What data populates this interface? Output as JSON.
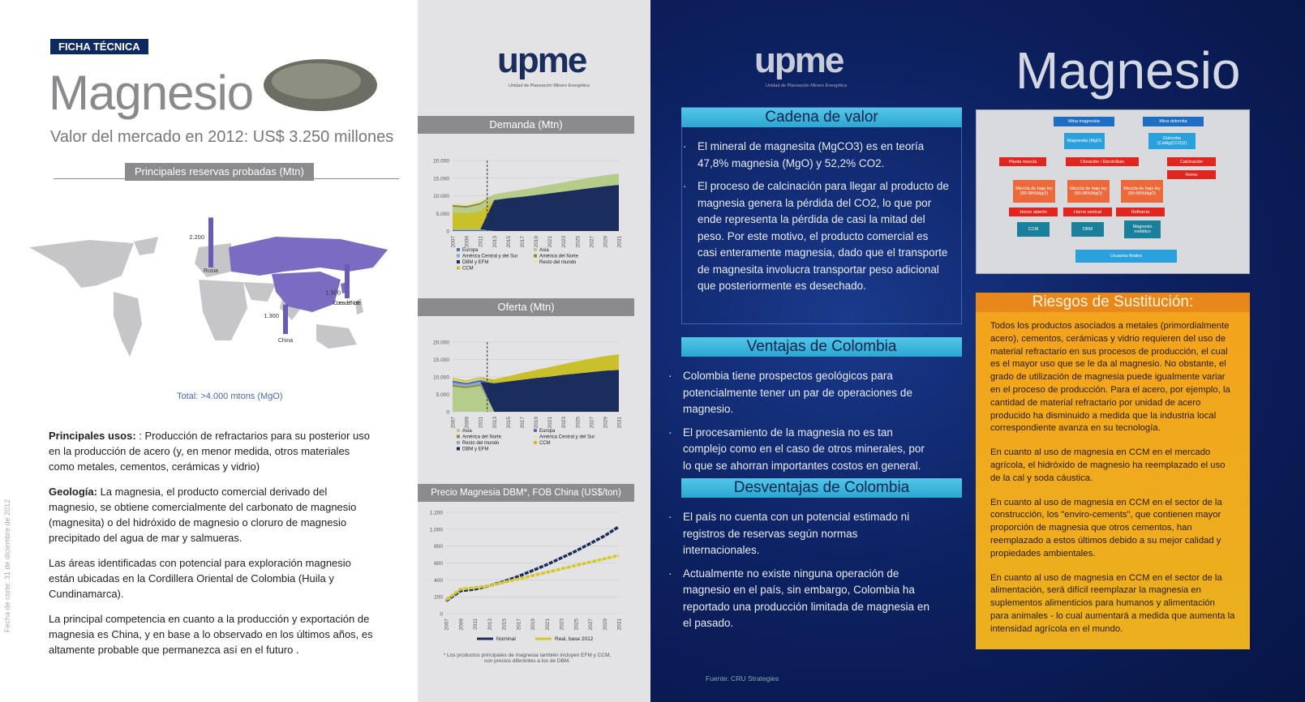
{
  "left": {
    "badge": "FICHA TÉCNICA",
    "title": "Magnesio",
    "subtitle": "Valor del mercado en 2012: US$ 3.250 millones",
    "map_title": "Principales reservas probadas (Mtn)",
    "reserves": [
      {
        "country": "Rusia",
        "value": 2200,
        "label": "2.200"
      },
      {
        "country": "Corea del Norte",
        "value": 1500,
        "label": "1.500"
      },
      {
        "country": "China",
        "value": 1300,
        "label": "1.300"
      }
    ],
    "map_total": "Total: >4.000 mtons (MgO)",
    "paragraphs": [
      {
        "lead": "Principales usos:",
        "text": " : Producción de refractarios para su posterior uso en la producción de acero (y, en menor medida, otros materiales como metales, cementos, cerámicas y vidrio)"
      },
      {
        "lead": "Geología:",
        "text": " La magnesia, el producto comercial derivado del magnesio, se obtiene  comercialmente del carbonato de magnesio (magnesita) o del hidróxido de magnesio o cloruro de magnesio precipitado del agua de mar y salmueras."
      },
      {
        "lead": "",
        "text": "Las áreas identificadas con potencial para exploración magnesio están ubicadas en la Cordillera Oriental de Colombia (Huila y Cundinamarca)."
      },
      {
        "lead": "",
        "text": "La principal competencia en cuanto a la producción y exportación de magnesia es China, y en base a lo observado en los últimos años, es altamente probable que permanezca así en el futuro ."
      }
    ],
    "date_note": "Fecha de corte: 31 de diciembre de 2012"
  },
  "middle": {
    "logo": "upme",
    "logo_sub": "Unidad de Planeación Minero Energética"
  },
  "chart_data": [
    {
      "type": "area",
      "title": "Demanda (Mtn)",
      "x": [
        2007,
        2009,
        2011,
        2013,
        2015,
        2017,
        2019,
        2021,
        2023,
        2025,
        2027,
        2029,
        2031
      ],
      "xlim": [
        2007,
        2031
      ],
      "forecast_start": 2012,
      "ylim": [
        0,
        20000
      ],
      "yticks": [
        0,
        {
          "value": 5000,
          "label": "5.000"
        },
        {
          "value": 10000,
          "label": "10.000"
        },
        {
          "value": 15000,
          "label": "15.000"
        },
        {
          "value": 20000,
          "label": "20.000"
        }
      ],
      "series": [
        {
          "name": "Europa",
          "color": "#4f73a8",
          "values": [
            300,
            300,
            300,
            0,
            0,
            0,
            0,
            0,
            0,
            0,
            0,
            0,
            0
          ]
        },
        {
          "name": "América Central y del Sur",
          "color": "#8fa6c8",
          "values": [
            200,
            200,
            200,
            0,
            0,
            0,
            0,
            0,
            0,
            0,
            0,
            0,
            0
          ]
        },
        {
          "name": "DBM y EFM",
          "color": "#1b2d5c",
          "values": [
            0,
            0,
            0,
            8800,
            9300,
            9700,
            10200,
            10700,
            11200,
            11700,
            12200,
            12700,
            13100
          ]
        },
        {
          "name": "CCM",
          "color": "#c9c02c",
          "values": [
            4800,
            4600,
            5200,
            0,
            0,
            0,
            0,
            0,
            0,
            0,
            0,
            0,
            0
          ]
        },
        {
          "name": "Asia",
          "color": "#b6cc8a",
          "values": [
            1600,
            1500,
            1800,
            1600,
            1800,
            2000,
            2200,
            2400,
            2600,
            2800,
            3000,
            3100,
            3200
          ]
        },
        {
          "name": "América del Norte",
          "color": "#8a8a3a",
          "values": [
            500,
            500,
            500,
            0,
            0,
            0,
            0,
            0,
            0,
            0,
            0,
            0,
            0
          ]
        },
        {
          "name": "Resto del mundo",
          "color": "#e4e2b4",
          "values": [
            700,
            700,
            800,
            0,
            0,
            0,
            0,
            0,
            0,
            0,
            0,
            0,
            0
          ]
        }
      ]
    },
    {
      "type": "area",
      "title": "Oferta (Mtn)",
      "x": [
        2007,
        2009,
        2011,
        2013,
        2015,
        2017,
        2019,
        2021,
        2023,
        2025,
        2027,
        2029,
        2031
      ],
      "xlim": [
        2007,
        2031
      ],
      "forecast_start": 2012,
      "ylim": [
        0,
        20000
      ],
      "yticks": [
        0,
        {
          "value": 5000,
          "label": "5.000"
        },
        {
          "value": 10000,
          "label": "10.000"
        },
        {
          "value": 15000,
          "label": "15.000"
        },
        {
          "value": 20000,
          "label": "20.000"
        }
      ],
      "series": [
        {
          "name": "Asia",
          "color": "#b6cc8a",
          "values": [
            7200,
            6800,
            7400,
            0,
            0,
            0,
            0,
            0,
            0,
            0,
            0,
            0,
            0
          ]
        },
        {
          "name": "América del Norte",
          "color": "#8a8a3a",
          "values": [
            500,
            400,
            500,
            0,
            0,
            0,
            0,
            0,
            0,
            0,
            0,
            0,
            0
          ]
        },
        {
          "name": "Resto del mundo",
          "color": "#8fa6c8",
          "values": [
            700,
            600,
            700,
            0,
            0,
            0,
            0,
            0,
            0,
            0,
            0,
            0,
            0
          ]
        },
        {
          "name": "DBM y EFM",
          "color": "#1b2d5c",
          "values": [
            0,
            0,
            0,
            8200,
            8700,
            9200,
            9700,
            10100,
            10600,
            11000,
            11400,
            11800,
            12000
          ]
        },
        {
          "name": "Europa",
          "color": "#4f73a8",
          "values": [
            600,
            500,
            600,
            0,
            0,
            0,
            0,
            0,
            0,
            0,
            0,
            0,
            0
          ]
        },
        {
          "name": "América Central y del Sur",
          "color": "#e4e2b4",
          "values": [
            300,
            300,
            300,
            0,
            0,
            0,
            0,
            0,
            0,
            0,
            0,
            0,
            0
          ]
        },
        {
          "name": "CCM",
          "color": "#c9c02c",
          "values": [
            400,
            400,
            400,
            1100,
            1500,
            1900,
            2300,
            2700,
            3100,
            3500,
            3900,
            4200,
            4500
          ]
        }
      ]
    },
    {
      "type": "line",
      "title": "Precio Magnesia DBM*, FOB China (US$/ton)",
      "x": [
        2007,
        2009,
        2011,
        2013,
        2015,
        2017,
        2019,
        2021,
        2023,
        2025,
        2027,
        2029,
        2031
      ],
      "xlim": [
        2007,
        2031
      ],
      "ylim": [
        0,
        1200
      ],
      "yticks": [
        0,
        200,
        400,
        600,
        800,
        {
          "value": 1000,
          "label": "1.000"
        },
        {
          "value": 1200,
          "label": "1.200"
        }
      ],
      "series": [
        {
          "name": "Nominal",
          "color": "#1b2d5c",
          "values": [
            150,
            270,
            290,
            330,
            380,
            440,
            510,
            580,
            660,
            740,
            830,
            920,
            1030
          ]
        },
        {
          "name": "Real, base 2012",
          "color": "#d4c823",
          "values": [
            160,
            290,
            310,
            330,
            370,
            410,
            450,
            490,
            530,
            570,
            610,
            650,
            690
          ]
        }
      ],
      "note": "* Los productos principales de magnesia también incluyen EFM y CCM, con precios diferentes a los de DBM."
    }
  ],
  "right": {
    "logo": "upme",
    "logo_sub": "Unidad de Planeación Minero Energética",
    "title": "Magnesio",
    "sections": [
      {
        "heading": "Cadena de valor",
        "bullets": [
          "El mineral de magnesita (MgCO3) es en teoría 47,8% magnesia (MgO) y 52,2% CO2.",
          "El proceso de calcinación para llegar al producto de magnesia genera la pérdida del CO2, lo que por ende representa la pérdida de casi la mitad del peso. Por este motivo, el producto comercial es casi enteramente magnesia, dado que el transporte de magnesita involucra transportar peso adicional que posteriormente es desechado."
        ]
      },
      {
        "heading": "Ventajas de Colombia",
        "bullets": [
          "Colombia tiene prospectos geológicos para potencialmente tener un par de operaciones de magnesio.",
          "El procesamiento de la magnesia no es tan  complejo como en el caso de otros minerales, por lo que se ahorran importantes costos en  general."
        ]
      },
      {
        "heading": "Desventajas de Colombia",
        "bullets": [
          "El país no cuenta con un potencial estimado ni registros de reservas según normas internacionales.",
          "Actualmente no existe ninguna operación  de magnesio en el país, sin embargo, Colombia ha reportado una producción  limitada de magnesia en el pasado."
        ]
      }
    ],
    "diagram": {
      "nodes": [
        "Mina magnesita",
        "Mina dolomita",
        "Magnesita (MgO)",
        "Dolomita (CaMg(CO3)2)",
        "Planta mezcla",
        "Cloración / Electrólisis",
        "Calcinación",
        "Horno",
        "Mezcla de baja ley (90-98%MgO)",
        "Mezcla de baja ley (90-98%MgO)",
        "Mezcla de baja ley (90-98%MgO)",
        "Horno abierto",
        "Horno vertical",
        "Refinería",
        "CCM",
        "DBM",
        "Magnesio metálico",
        "Usuarios finales"
      ]
    },
    "risks": {
      "heading": "Riesgos de Sustitución:",
      "paragraphs": [
        "Todos los productos asociados a metales (primordialmente acero), cementos, cerámicas y vidrio requieren del uso de material refractario en sus procesos de producción, el cual es el mayor uso que se le da al magnesio. No obstante, el grado de utilización de magnesia puede igualmente variar en el proceso de producción. Para el acero, por ejemplo, la cantidad de material refractario por unidad de acero producido ha disminuido a medida que la industria local correspondiente avanza en su tecnología.",
        "En cuanto al uso de magnesia en CCM en el mercado agrícola, el hidróxido de magnesio ha reemplazado el uso de la cal y soda cáustica.",
        "En cuanto al uso de magnesia en CCM en el sector de la construcción, los \"enviro-cements\", que contienen mayor proporción de magnesia que otros cementos, han reemplazado a estos últimos debido a su mejor calidad y propiedades ambientales.",
        "En cuanto al uso de magnesia en CCM en el sector de la alimentación, será difícil reemplazar la magnesia en suplementos alimenticios para humanos y alimentación para animales - lo cual aumentará a medida que aumenta la intensidad agrícola en el mundo."
      ]
    },
    "source": "Fuente: CRU Strategies"
  }
}
